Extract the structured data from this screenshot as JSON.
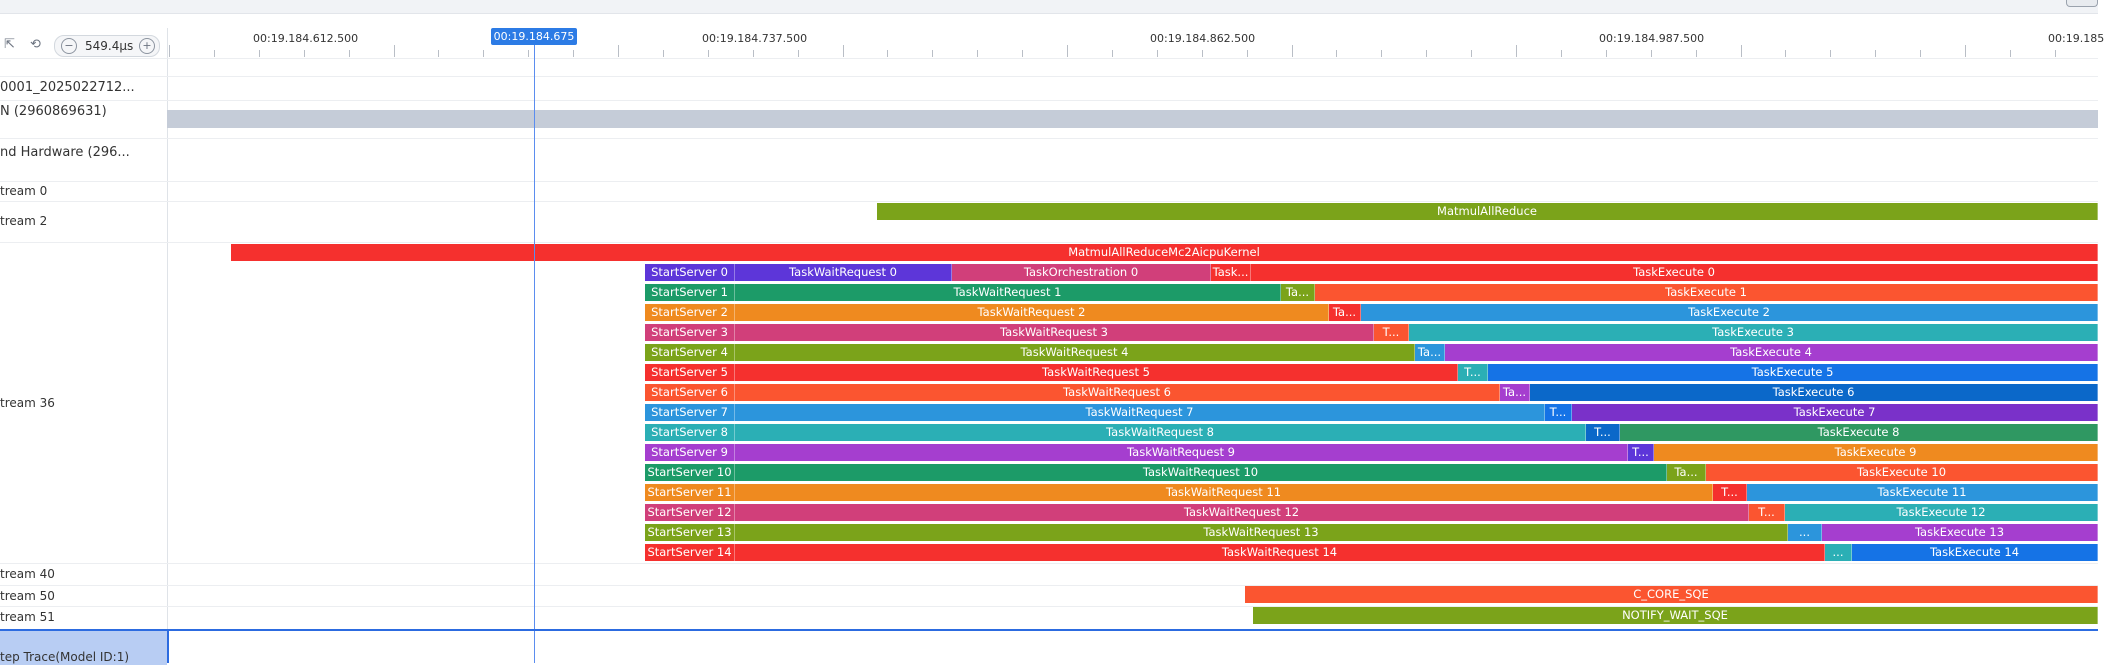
{
  "toolbar": {
    "zoom_value": "549.4µs",
    "zoom_out_symbol": "−",
    "zoom_in_symbol": "+",
    "reset_symbol": "⟲",
    "layout_symbol": "⇱"
  },
  "ruler": {
    "labels": [
      "00:19.184.612.500",
      "00:19.184.737.500",
      "00:19.184.862.500",
      "00:19.184.987.500",
      "00:19.185"
    ],
    "cursor_label": "00:19.184.675"
  },
  "rows": {
    "labels": [
      "0001_2025022712...",
      "N (2960869631)",
      "nd Hardware (296...",
      "tream 0",
      "tream 2",
      "tream 36",
      "tream 40",
      "tream 50",
      "tream 51"
    ],
    "bottom_label": "tep Trace(Model ID:1)"
  },
  "tracks": {
    "stream2_bar": "MatmulAllReduce",
    "kernel_bar": "MatmulAllReduceMc2AicpuKernel",
    "servers": [
      {
        "start": "StartServer 0",
        "wait": "TaskWaitRequest 0",
        "orch": "TaskOrchestration 0",
        "mid": "Task...",
        "exec": "TaskExecute 0"
      },
      {
        "start": "StartServer 1",
        "wait": "TaskWaitRequest 1",
        "mid": "Ta...",
        "exec": "TaskExecute 1"
      },
      {
        "start": "StartServer 2",
        "wait": "TaskWaitRequest 2",
        "mid": "Ta...",
        "exec": "TaskExecute 2"
      },
      {
        "start": "StartServer 3",
        "wait": "TaskWaitRequest 3",
        "mid": "T...",
        "exec": "TaskExecute 3"
      },
      {
        "start": "StartServer 4",
        "wait": "TaskWaitRequest 4",
        "mid": "Ta...",
        "exec": "TaskExecute 4"
      },
      {
        "start": "StartServer 5",
        "wait": "TaskWaitRequest 5",
        "mid": "T...",
        "exec": "TaskExecute 5"
      },
      {
        "start": "StartServer 6",
        "wait": "TaskWaitRequest 6",
        "mid": "Ta...",
        "exec": "TaskExecute 6"
      },
      {
        "start": "StartServer 7",
        "wait": "TaskWaitRequest 7",
        "mid": "T...",
        "exec": "TaskExecute 7"
      },
      {
        "start": "StartServer 8",
        "wait": "TaskWaitRequest 8",
        "mid": "T...",
        "exec": "TaskExecute 8"
      },
      {
        "start": "StartServer 9",
        "wait": "TaskWaitRequest 9",
        "mid": "T...",
        "exec": "TaskExecute 9"
      },
      {
        "start": "StartServer 10",
        "wait": "TaskWaitRequest 10",
        "mid": "Ta...",
        "exec": "TaskExecute 10"
      },
      {
        "start": "StartServer 11",
        "wait": "TaskWaitRequest 11",
        "mid": "T...",
        "exec": "TaskExecute 11"
      },
      {
        "start": "StartServer 12",
        "wait": "TaskWaitRequest 12",
        "mid": "T...",
        "exec": "TaskExecute 12"
      },
      {
        "start": "StartServer 13",
        "wait": "TaskWaitRequest 13",
        "mid": "...",
        "exec": "TaskExecute 13"
      },
      {
        "start": "StartServer 14",
        "wait": "TaskWaitRequest 14",
        "mid": "...",
        "exec": "TaskExecute 14"
      }
    ],
    "stream50_bar": "C_CORE_SQE",
    "stream51_bar": "NOTIFY_WAIT_SQE"
  },
  "colors": {
    "accent": "#2c7be5",
    "matmul": "#7ba31a",
    "kernel": "#f5302e",
    "gray_band": "#c5ccd8"
  }
}
